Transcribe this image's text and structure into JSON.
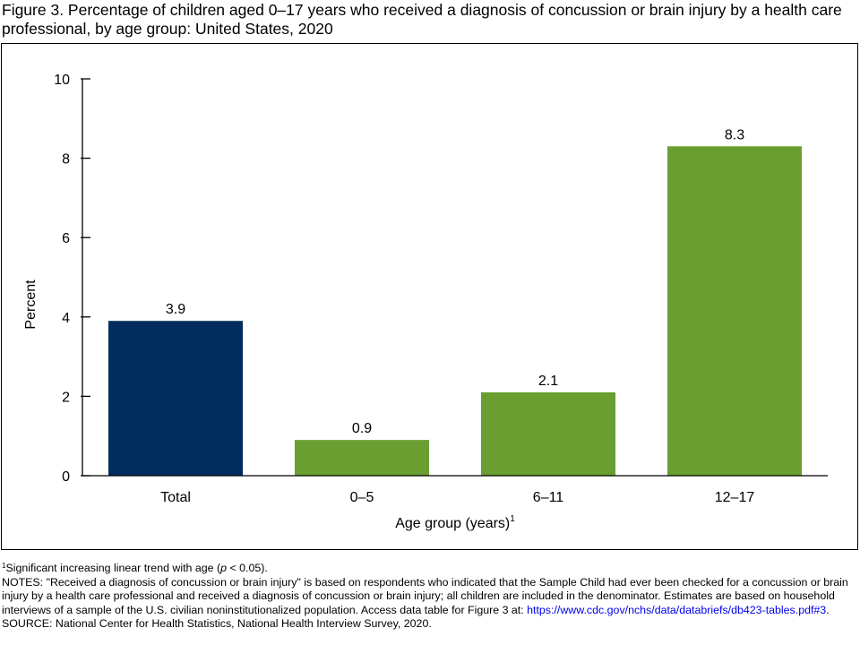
{
  "title": "Figure 3. Percentage of children aged 0–17 years who received a diagnosis of concussion or brain injury by a health care professional, by age group: United States, 2020",
  "chart_data": {
    "type": "bar",
    "categories": [
      "Total",
      "0–5",
      "6–11",
      "12–17"
    ],
    "values": [
      3.9,
      0.9,
      2.1,
      8.3
    ],
    "data_labels": [
      "3.9",
      "0.9",
      "2.1",
      "8.3"
    ],
    "colors": [
      "#002d5e",
      "#6a9e31",
      "#6a9e31",
      "#6a9e31"
    ],
    "xlabel": "Age group (years)",
    "xlabel_sup": "1",
    "ylabel": "Percent",
    "ylim": [
      0,
      10
    ],
    "yticks": [
      0,
      2,
      4,
      6,
      8,
      10
    ],
    "grid": false,
    "legend": "none"
  },
  "notes": {
    "footnote_marker": "1",
    "footnote_text_before": "Significant increasing linear trend with age (",
    "footnote_p": "p",
    "footnote_text_after": " < 0.05).",
    "notes_text": "NOTES: \"Received a diagnosis of concussion or brain injury\" is based on respondents who indicated that the Sample Child had ever been checked for a concussion or brain injury by a health care professional and received a diagnosis of concussion or brain injury; all children are included in the denominator. Estimates are based on household interviews of a sample of the U.S. civilian noninstitutionalized population. Access data table for Figure 3 at:",
    "link_text": "https://www.cdc.gov/nchs/data/databriefs/db423-tables.pdf#3",
    "link_suffix": ".",
    "source_text": "SOURCE: National Center for Health Statistics, National Health Interview Survey, 2020."
  }
}
